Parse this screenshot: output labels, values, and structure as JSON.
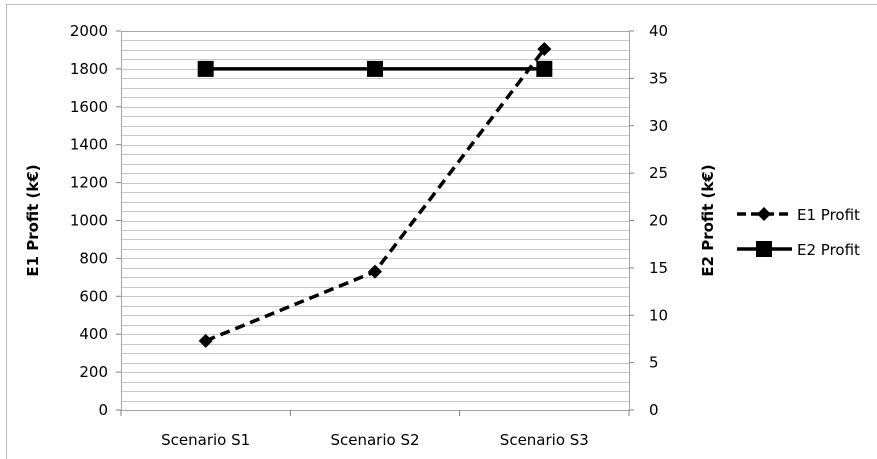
{
  "chart_data": {
    "type": "line",
    "categories": [
      "Scenario S1",
      "Scenario S2",
      "Scenario S3"
    ],
    "series": [
      {
        "name": "E1 Profit",
        "axis": "left",
        "values": [
          365,
          730,
          1905
        ],
        "style": "dashed",
        "marker": "diamond",
        "color": "#000000"
      },
      {
        "name": "E2 Profit",
        "axis": "right",
        "values": [
          36,
          36,
          36
        ],
        "style": "solid",
        "marker": "square",
        "color": "#000000"
      }
    ],
    "ylabel_left": "E1 Profit (k€)",
    "ylabel_right": "E2 Profit (k€)",
    "ylim_left": [
      0,
      2000
    ],
    "ylim_right": [
      0,
      40
    ],
    "yticks_left": [
      "0",
      "200",
      "400",
      "600",
      "800",
      "1000",
      "1200",
      "1400",
      "1600",
      "1800",
      "2000"
    ],
    "yticks_right": [
      "0",
      "5",
      "10",
      "15",
      "20",
      "25",
      "30",
      "35",
      "40"
    ],
    "grid": true,
    "legend": "right"
  }
}
